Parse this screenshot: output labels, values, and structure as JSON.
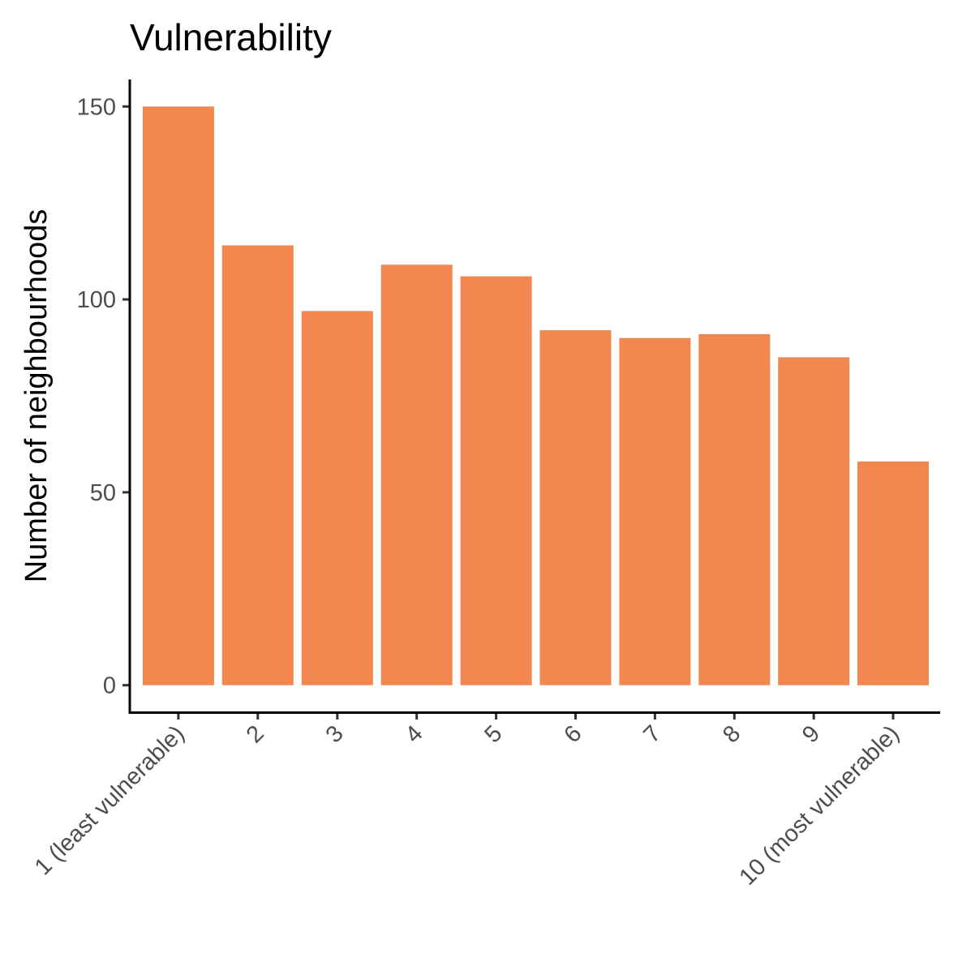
{
  "chart_data": {
    "type": "bar",
    "title": "Vulnerability",
    "xlabel": "",
    "ylabel": "Number of neighbourhoods",
    "categories": [
      "1 (least vulnerable)",
      "2",
      "3",
      "4",
      "5",
      "6",
      "7",
      "8",
      "9",
      "10 (most vulnerable)"
    ],
    "values": [
      150,
      114,
      97,
      109,
      106,
      92,
      90,
      91,
      85,
      58
    ],
    "ylim": [
      -7,
      157
    ],
    "yticks": [
      0,
      50,
      100,
      150
    ],
    "bar_color": "#F2874F",
    "grid": false,
    "legend": "none"
  }
}
